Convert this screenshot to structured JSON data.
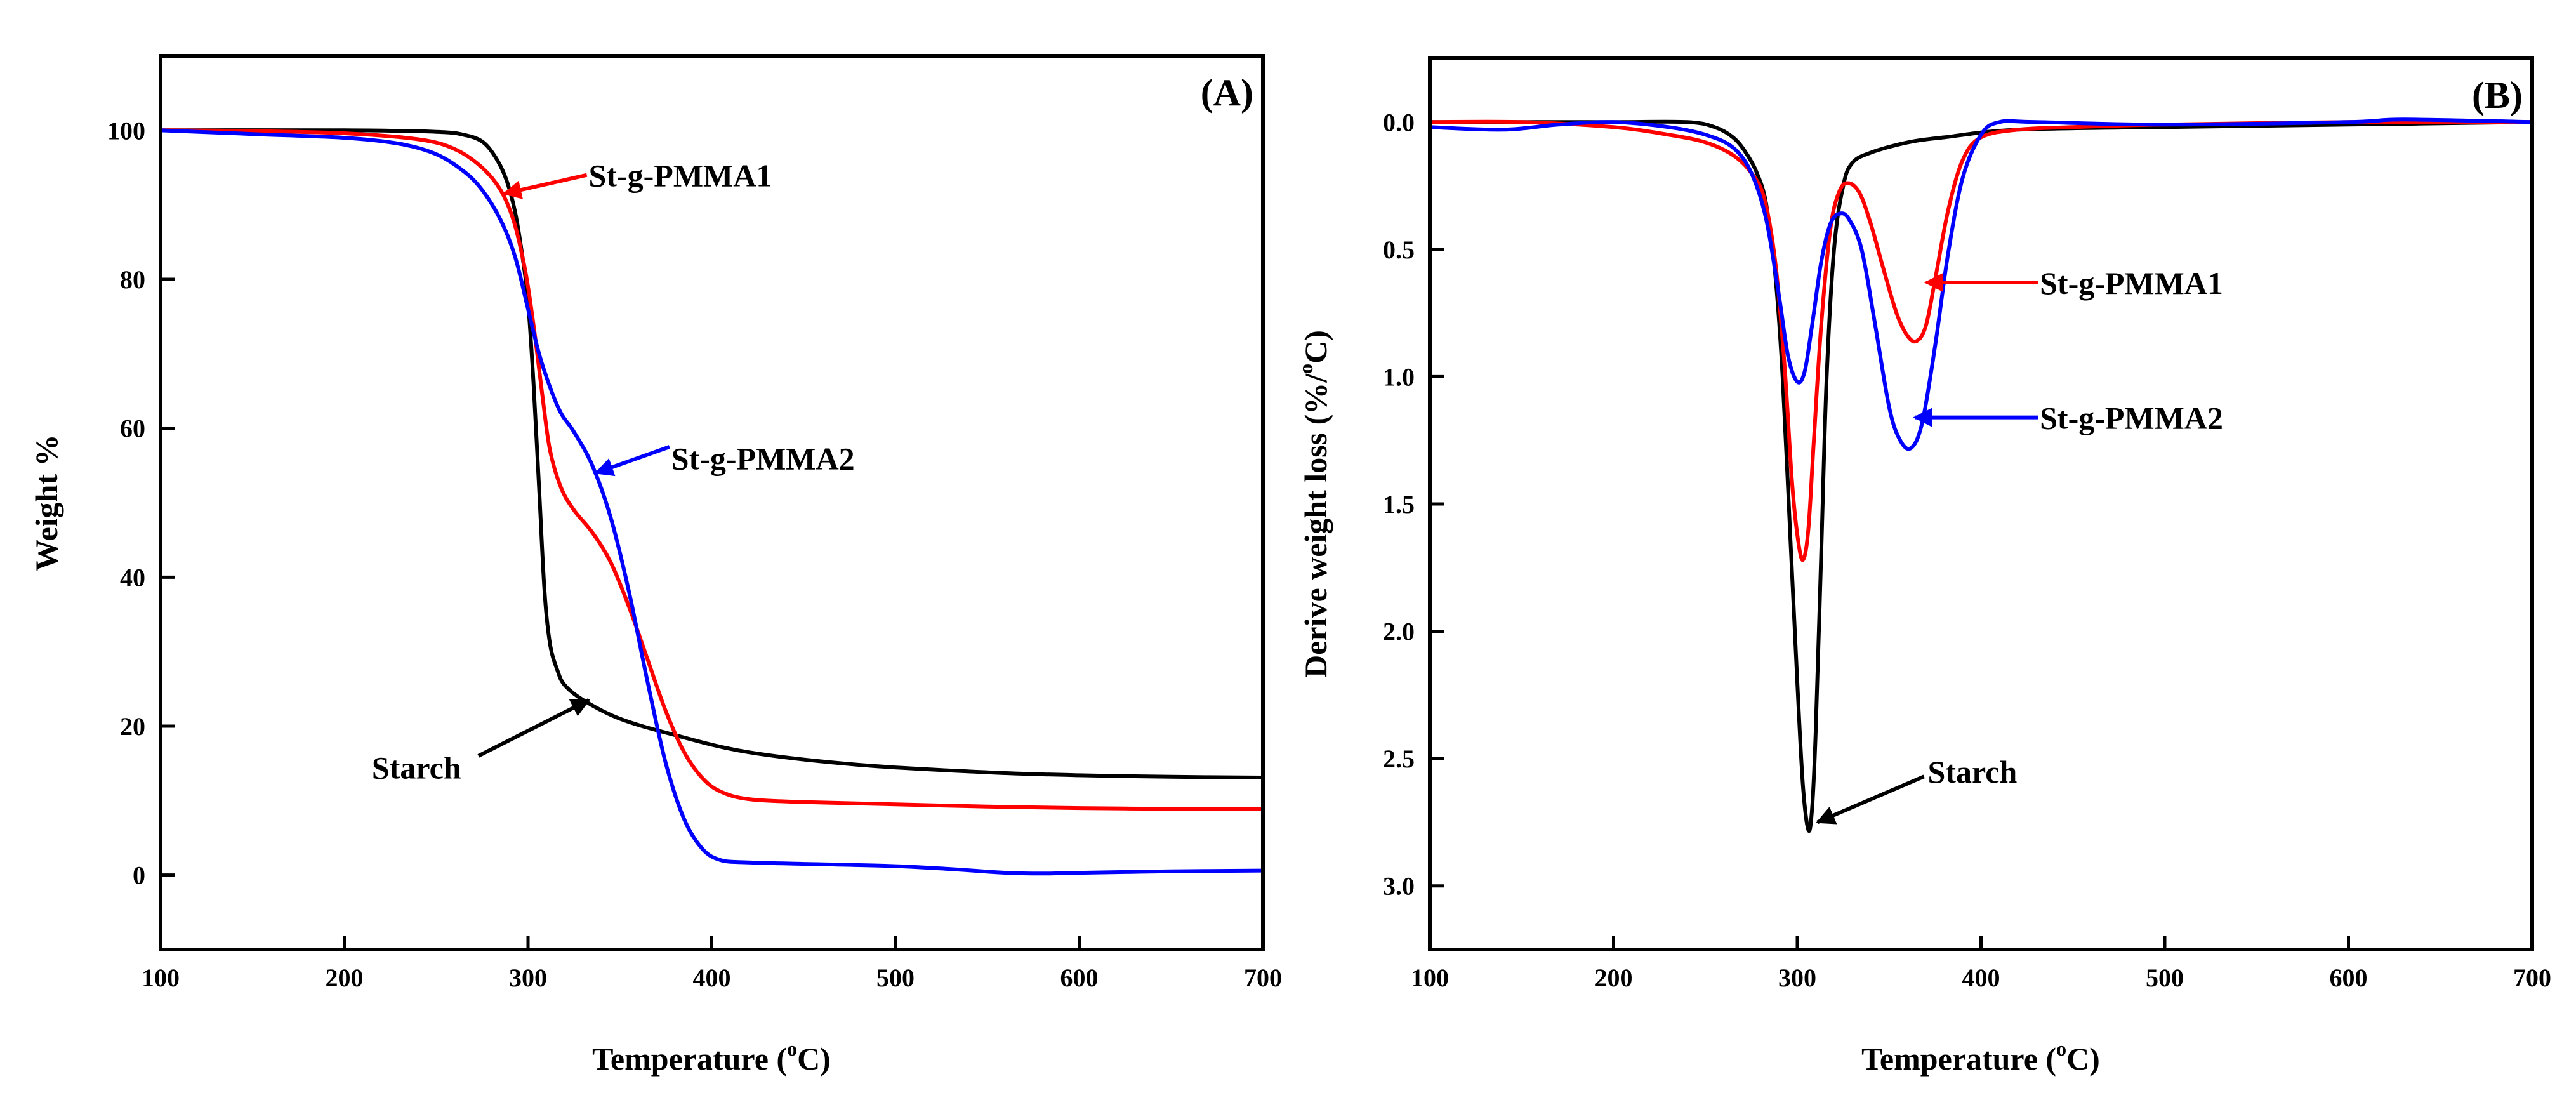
{
  "chart_data": [
    {
      "panel": "A",
      "type": "line",
      "panel_label": "(A)",
      "xlabel_parts": [
        "Temperature (",
        "o",
        "C)"
      ],
      "ylabel": "Weight %",
      "xlim": [
        100,
        700
      ],
      "ylim": [
        -10,
        110
      ],
      "x_ticks": [
        100,
        200,
        300,
        400,
        500,
        600,
        700
      ],
      "y_ticks": [
        0,
        20,
        40,
        60,
        80,
        100
      ],
      "series": [
        {
          "name": "Starch",
          "color": "#000000",
          "x": [
            100,
            200,
            250,
            265,
            275,
            282,
            288,
            293,
            297,
            300,
            303,
            306,
            309,
            312,
            316,
            320,
            330,
            350,
            380,
            420,
            480,
            550,
            600,
            650,
            700
          ],
          "y": [
            100,
            100,
            99.8,
            99.4,
            98.5,
            96.5,
            93.5,
            89,
            83,
            77,
            66,
            52,
            38,
            31,
            27.5,
            25.5,
            23.5,
            21,
            18.8,
            16.5,
            14.8,
            13.8,
            13.4,
            13.2,
            13.1
          ]
        },
        {
          "name": "St-g-PMMA1",
          "color": "#ff0000",
          "x": [
            100,
            150,
            200,
            240,
            260,
            275,
            285,
            292,
            297,
            300,
            304,
            308,
            312,
            318,
            325,
            335,
            345,
            355,
            365,
            375,
            385,
            395,
            405,
            420,
            450,
            500,
            550,
            600,
            650,
            700
          ],
          "y": [
            100,
            99.9,
            99.6,
            98.8,
            97.5,
            95,
            92,
            88,
            83,
            79,
            72,
            64,
            57,
            52,
            49,
            46,
            42,
            36,
            29,
            22,
            16.5,
            13,
            11.2,
            10.2,
            9.8,
            9.5,
            9.2,
            9.0,
            8.9,
            8.9
          ]
        },
        {
          "name": "St-g-PMMA2",
          "color": "#0000ff",
          "x": [
            100,
            150,
            200,
            230,
            250,
            265,
            275,
            285,
            293,
            300,
            306,
            312,
            318,
            325,
            335,
            345,
            355,
            365,
            375,
            385,
            395,
            405,
            420,
            450,
            500,
            530,
            560,
            580,
            600,
            650,
            700
          ],
          "y": [
            100,
            99.5,
            99.0,
            98.2,
            96.8,
            94.5,
            92,
            88,
            83,
            76,
            70,
            65.5,
            62,
            59.5,
            55,
            48,
            38,
            26,
            15,
            7.5,
            3.5,
            2.0,
            1.7,
            1.5,
            1.2,
            0.8,
            0.3,
            0.2,
            0.3,
            0.5,
            0.6
          ]
        }
      ],
      "annotations": [
        {
          "text": "St-g-PMMA1",
          "color": "#ff0000",
          "text_x": 333,
          "text_y": 94,
          "arrow_from": [
            332,
            94
          ],
          "arrow_to": [
            287,
            91.5
          ]
        },
        {
          "text": "St-g-PMMA2",
          "color": "#0000ff",
          "text_x": 378,
          "text_y": 56,
          "arrow_from": [
            377,
            57.5
          ],
          "arrow_to": [
            337,
            54
          ]
        },
        {
          "text": "Starch",
          "color": "#000000",
          "text_x": 215,
          "text_y": 14.5,
          "arrow_from": [
            273,
            16
          ],
          "arrow_to": [
            333,
            23.5
          ]
        }
      ]
    },
    {
      "panel": "B",
      "type": "line",
      "panel_label": "(B)",
      "xlabel_parts": [
        "Temperature (",
        "o",
        "C)"
      ],
      "ylabel_parts": [
        "Derive weight loss (%/",
        "o",
        "C)"
      ],
      "xlim": [
        100,
        700
      ],
      "ylim": [
        3.25,
        -0.25
      ],
      "x_ticks": [
        100,
        200,
        300,
        400,
        500,
        600,
        700
      ],
      "y_ticks": [
        0.0,
        0.5,
        1.0,
        1.5,
        2.0,
        2.5,
        3.0
      ],
      "series": [
        {
          "name": "Starch",
          "color": "#000000",
          "x": [
            100,
            150,
            200,
            240,
            255,
            265,
            272,
            278,
            283,
            288,
            292,
            296,
            300,
            303,
            306,
            308,
            310,
            313,
            316,
            320,
            325,
            330,
            340,
            360,
            380,
            420,
            500,
            600,
            700
          ],
          "y": [
            0.0,
            0.0,
            0.0,
            0.0,
            0.02,
            0.06,
            0.12,
            0.2,
            0.32,
            0.6,
            1.0,
            1.6,
            2.2,
            2.6,
            2.78,
            2.7,
            2.4,
            1.7,
            1.0,
            0.5,
            0.25,
            0.16,
            0.12,
            0.08,
            0.06,
            0.03,
            0.02,
            0.01,
            0.0
          ]
        },
        {
          "name": "St-g-PMMA1",
          "color": "#ff0000",
          "x": [
            100,
            150,
            200,
            230,
            250,
            265,
            275,
            282,
            288,
            293,
            297,
            300,
            303,
            306,
            309,
            313,
            318,
            323,
            328,
            334,
            340,
            347,
            354,
            360,
            365,
            370,
            375,
            382,
            390,
            400,
            420,
            450,
            500,
            600,
            700
          ],
          "y": [
            0.0,
            0.0,
            0.02,
            0.05,
            0.08,
            0.13,
            0.2,
            0.3,
            0.55,
            0.95,
            1.4,
            1.62,
            1.72,
            1.6,
            1.25,
            0.8,
            0.42,
            0.27,
            0.24,
            0.28,
            0.4,
            0.58,
            0.75,
            0.84,
            0.86,
            0.8,
            0.62,
            0.35,
            0.15,
            0.06,
            0.03,
            0.02,
            0.01,
            0.0,
            0.0
          ]
        },
        {
          "name": "St-g-PMMA2",
          "color": "#0000ff",
          "x": [
            100,
            140,
            170,
            200,
            230,
            250,
            265,
            275,
            283,
            290,
            295,
            300,
            304,
            308,
            313,
            318,
            323,
            328,
            335,
            342,
            350,
            356,
            362,
            368,
            375,
            382,
            390,
            400,
            410,
            430,
            500,
            600,
            630,
            700
          ],
          "y": [
            0.02,
            0.03,
            0.01,
            0.0,
            0.02,
            0.05,
            0.1,
            0.2,
            0.38,
            0.68,
            0.92,
            1.02,
            0.98,
            0.8,
            0.55,
            0.4,
            0.36,
            0.38,
            0.5,
            0.78,
            1.12,
            1.25,
            1.28,
            1.18,
            0.88,
            0.52,
            0.22,
            0.05,
            0.0,
            0.0,
            0.01,
            0.0,
            -0.01,
            0.0
          ]
        }
      ],
      "annotations": [
        {
          "text": "St-g-PMMA1",
          "color": "#ff0000",
          "text_x": 432,
          "text_y": 0.63,
          "arrow_from": [
            431,
            0.63
          ],
          "arrow_to": [
            370,
            0.63
          ]
        },
        {
          "text": "St-g-PMMA2",
          "color": "#0000ff",
          "text_x": 432,
          "text_y": 1.16,
          "arrow_from": [
            431,
            1.16
          ],
          "arrow_to": [
            364,
            1.16
          ]
        },
        {
          "text": "Starch",
          "color": "#000000",
          "text_x": 371,
          "text_y": 2.55,
          "arrow_from": [
            369,
            2.57
          ],
          "arrow_to": [
            311,
            2.75
          ]
        }
      ]
    }
  ]
}
